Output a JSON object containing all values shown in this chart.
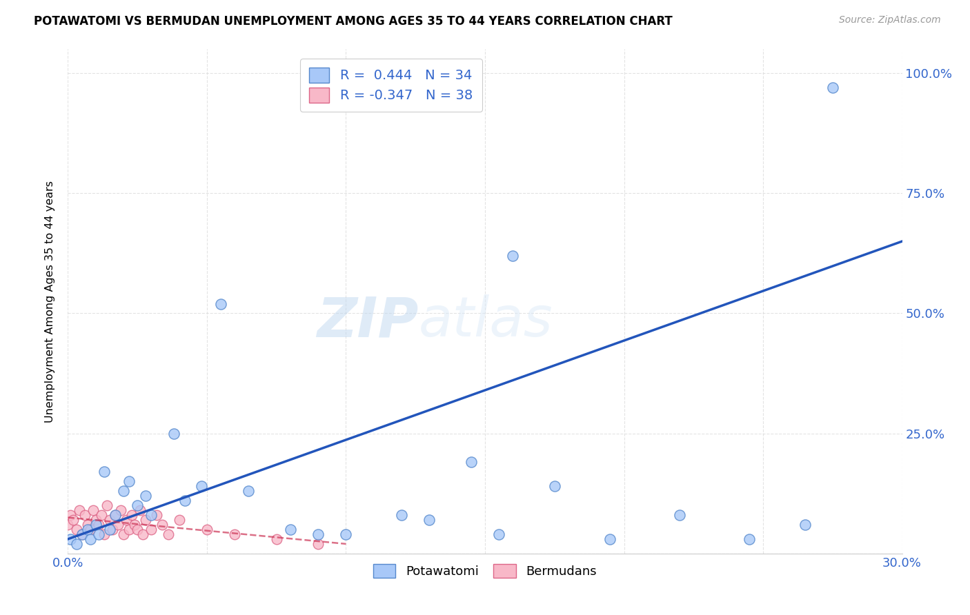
{
  "title": "POTAWATOMI VS BERMUDAN UNEMPLOYMENT AMONG AGES 35 TO 44 YEARS CORRELATION CHART",
  "source": "Source: ZipAtlas.com",
  "ylabel": "Unemployment Among Ages 35 to 44 years",
  "xlim": [
    0.0,
    0.3
  ],
  "ylim": [
    0.0,
    1.05
  ],
  "potawatomi_color": "#a8c8f8",
  "potawatomi_edge": "#5588cc",
  "bermuda_color": "#f8b8c8",
  "bermuda_edge": "#dd6688",
  "trendline_pot_color": "#2255bb",
  "trendline_ber_color": "#cc3355",
  "R_potawatomi": 0.444,
  "N_potawatomi": 34,
  "R_bermuda": -0.347,
  "N_bermuda": 38,
  "legend_potawatomi": "Potawatomi",
  "legend_bermuda": "Bermudans",
  "watermark": "ZIPatlas",
  "background_color": "#ffffff",
  "grid_color": "#dddddd",
  "axis_label_color": "#3366cc",
  "pot_x": [
    0.001,
    0.003,
    0.005,
    0.007,
    0.008,
    0.01,
    0.011,
    0.013,
    0.015,
    0.017,
    0.02,
    0.022,
    0.025,
    0.028,
    0.03,
    0.038,
    0.042,
    0.048,
    0.055,
    0.065,
    0.08,
    0.09,
    0.1,
    0.12,
    0.13,
    0.155,
    0.175,
    0.195,
    0.22,
    0.245,
    0.265,
    0.275,
    0.145,
    0.16
  ],
  "pot_y": [
    0.03,
    0.02,
    0.04,
    0.05,
    0.03,
    0.06,
    0.04,
    0.17,
    0.05,
    0.08,
    0.13,
    0.15,
    0.1,
    0.12,
    0.08,
    0.25,
    0.11,
    0.14,
    0.52,
    0.13,
    0.05,
    0.04,
    0.04,
    0.08,
    0.07,
    0.04,
    0.14,
    0.03,
    0.08,
    0.03,
    0.06,
    0.97,
    0.19,
    0.62
  ],
  "ber_x": [
    0.0,
    0.001,
    0.002,
    0.003,
    0.004,
    0.005,
    0.006,
    0.007,
    0.008,
    0.009,
    0.01,
    0.011,
    0.012,
    0.013,
    0.014,
    0.015,
    0.016,
    0.017,
    0.018,
    0.019,
    0.02,
    0.021,
    0.022,
    0.023,
    0.024,
    0.025,
    0.026,
    0.027,
    0.028,
    0.03,
    0.032,
    0.034,
    0.036,
    0.04,
    0.05,
    0.06,
    0.075,
    0.09
  ],
  "ber_y": [
    0.06,
    0.08,
    0.07,
    0.05,
    0.09,
    0.04,
    0.08,
    0.06,
    0.05,
    0.09,
    0.07,
    0.06,
    0.08,
    0.04,
    0.1,
    0.07,
    0.05,
    0.08,
    0.06,
    0.09,
    0.04,
    0.07,
    0.05,
    0.08,
    0.06,
    0.05,
    0.09,
    0.04,
    0.07,
    0.05,
    0.08,
    0.06,
    0.04,
    0.07,
    0.05,
    0.04,
    0.03,
    0.02
  ],
  "trendline_pot_x0": 0.0,
  "trendline_pot_y0": 0.03,
  "trendline_pot_x1": 0.3,
  "trendline_pot_y1": 0.65,
  "trendline_ber_x0": 0.0,
  "trendline_ber_y0": 0.075,
  "trendline_ber_x1": 0.1,
  "trendline_ber_y1": 0.02
}
